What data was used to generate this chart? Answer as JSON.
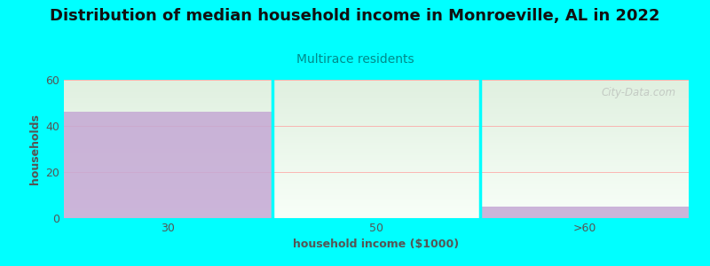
{
  "title": "Distribution of median household income in Monroeville, AL in 2022",
  "subtitle": "Multirace residents",
  "xlabel": "household income ($1000)",
  "ylabel": "households",
  "categories": [
    "30",
    "50",
    ">60"
  ],
  "values": [
    46,
    0,
    5
  ],
  "bar_color": "#c4a8d4",
  "bg_color": "#00ffff",
  "plot_bg_top": "#e0f0e0",
  "plot_bg_bottom": "#f8fff8",
  "ylim": [
    0,
    60
  ],
  "yticks": [
    0,
    20,
    40,
    60
  ],
  "hline_color": "#ff9999",
  "title_color": "#111111",
  "subtitle_color": "#008b8b",
  "axis_label_color": "#555555",
  "tick_color": "#555555",
  "watermark": "City-Data.com",
  "title_fontsize": 13,
  "subtitle_fontsize": 10,
  "label_fontsize": 9,
  "tick_fontsize": 9
}
